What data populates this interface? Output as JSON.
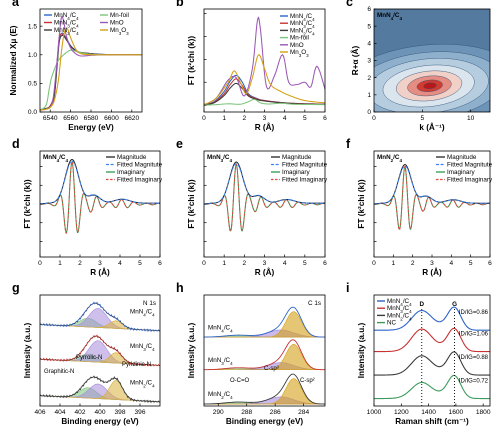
{
  "colors": {
    "MnN4C4": "#2c64c8",
    "MnN3C4": "#c83232",
    "MnN2C4": "#3c3c3c",
    "NC": "#3c9a5c",
    "Mnfoil": "#7cc47c",
    "MnO": "#9b59b6",
    "Mn3O3": "#d4a017",
    "magnitude": "#222222",
    "fitmag": "#3b82f6",
    "imag": "#2e9c4f",
    "fitimag": "#e0473c",
    "pyrrolic": "#a78bdb",
    "pyridinic": "#d9b03a",
    "graphitic": "#7cc47c",
    "csp2": "#d4a017",
    "csp3": "#a78bdb",
    "oco": "#7cc47c"
  },
  "chart_data": [
    {
      "panel": "a",
      "type": "line",
      "xlabel": "Energy (eV)",
      "ylabel": "Normalized Xμ (E)",
      "xlim": [
        6530,
        6630
      ],
      "ylim": [
        0,
        1.8
      ],
      "xticks": [
        "6540",
        "6560",
        "6580",
        "6600",
        "6620"
      ],
      "yticks": [
        "0.0",
        "0.5",
        "1.0",
        "1.5"
      ],
      "legend": [
        "MnN4/C4",
        "MnN3/C4",
        "MnN2/C4",
        "Mn-foil",
        "MnO",
        "Mn3O3"
      ],
      "series": [
        {
          "name": "MnN4/C4",
          "x": [
            6530,
            6536,
            6540,
            6544,
            6547,
            6549,
            6552,
            6556,
            6560,
            6565,
            6570,
            6580,
            6590,
            6600,
            6610,
            6620,
            6630
          ],
          "y": [
            0.04,
            0.06,
            0.1,
            0.3,
            0.9,
            1.28,
            1.38,
            1.28,
            1.16,
            1.08,
            1.04,
            1.02,
            1.01,
            1.0,
            1.0,
            1.0,
            1.0
          ]
        },
        {
          "name": "MnN3/C4",
          "x": [
            6530,
            6536,
            6540,
            6544,
            6547,
            6549,
            6552,
            6556,
            6560,
            6565,
            6570,
            6580,
            6590,
            6600,
            6610,
            6620,
            6630
          ],
          "y": [
            0.04,
            0.06,
            0.11,
            0.32,
            0.92,
            1.3,
            1.36,
            1.26,
            1.15,
            1.07,
            1.04,
            1.02,
            1.0,
            1.0,
            1.0,
            1.0,
            1.0
          ]
        },
        {
          "name": "MnN2/C4",
          "x": [
            6530,
            6536,
            6540,
            6544,
            6547,
            6549,
            6552,
            6556,
            6560,
            6565,
            6570,
            6580,
            6590,
            6600,
            6610,
            6620,
            6630
          ],
          "y": [
            0.04,
            0.06,
            0.1,
            0.28,
            0.86,
            1.24,
            1.34,
            1.26,
            1.15,
            1.07,
            1.04,
            1.02,
            1.0,
            1.0,
            1.0,
            1.0,
            1.0
          ]
        },
        {
          "name": "Mn-foil",
          "x": [
            6530,
            6536,
            6539,
            6541,
            6544,
            6548,
            6552,
            6556,
            6560,
            6566,
            6572,
            6580,
            6590,
            6600,
            6610,
            6620,
            6630
          ],
          "y": [
            0.03,
            0.12,
            0.4,
            0.58,
            0.74,
            0.9,
            0.98,
            1.04,
            1.08,
            1.06,
            1.03,
            1.01,
            1.0,
            1.0,
            1.0,
            1.0,
            1.0
          ]
        },
        {
          "name": "MnO",
          "x": [
            6530,
            6536,
            6540,
            6543,
            6546,
            6549,
            6551,
            6553,
            6556,
            6560,
            6565,
            6570,
            6580,
            6590,
            6600,
            6610,
            6620,
            6630
          ],
          "y": [
            0.03,
            0.05,
            0.09,
            0.25,
            0.75,
            1.35,
            1.65,
            1.6,
            1.32,
            1.12,
            1.02,
            0.98,
            0.99,
            1.0,
            1.0,
            1.0,
            1.0,
            1.0
          ]
        },
        {
          "name": "Mn3O3",
          "x": [
            6530,
            6536,
            6540,
            6544,
            6548,
            6551,
            6554,
            6557,
            6560,
            6565,
            6570,
            6580,
            6590,
            6600,
            6610,
            6620,
            6630
          ],
          "y": [
            0.03,
            0.05,
            0.08,
            0.2,
            0.55,
            1.05,
            1.4,
            1.45,
            1.3,
            1.1,
            1.02,
            1.0,
            1.0,
            1.0,
            1.0,
            1.0,
            1.0
          ]
        }
      ]
    },
    {
      "panel": "b",
      "type": "line",
      "xlabel": "R (Å)",
      "ylabel": "FT (k²chi (k))",
      "xlim": [
        0,
        6
      ],
      "ylim": [
        -0.3,
        4.2
      ],
      "xticks": [
        "0",
        "1",
        "2",
        "3",
        "4",
        "5",
        "6"
      ],
      "legend": [
        "MnN4/C4",
        "MnN3/C4",
        "MnN2/C4",
        "Mn-foil",
        "MnO",
        "Mn3O3"
      ],
      "series": [
        {
          "name": "MnN4/C4",
          "x": [
            0,
            0.5,
            1,
            1.3,
            1.6,
            1.9,
            2.2,
            2.6,
            3,
            4,
            5,
            6
          ],
          "y": [
            0.02,
            0.15,
            0.6,
            1.05,
            1.3,
            1.0,
            0.5,
            0.3,
            0.2,
            0.1,
            0.06,
            0.04
          ]
        },
        {
          "name": "MnN3/C4",
          "x": [
            0,
            0.5,
            1,
            1.3,
            1.6,
            1.9,
            2.2,
            2.6,
            3,
            4,
            5,
            6
          ],
          "y": [
            0.02,
            0.12,
            0.5,
            0.9,
            1.15,
            0.85,
            0.45,
            0.28,
            0.2,
            0.1,
            0.06,
            0.04
          ]
        },
        {
          "name": "MnN2/C4",
          "x": [
            0,
            0.5,
            1,
            1.3,
            1.6,
            1.9,
            2.2,
            2.6,
            3,
            4,
            5,
            6
          ],
          "y": [
            0.02,
            0.1,
            0.42,
            0.75,
            0.95,
            0.72,
            0.4,
            0.25,
            0.18,
            0.09,
            0.05,
            0.03
          ]
        },
        {
          "name": "Mn-foil",
          "x": [
            0,
            0.6,
            1.2,
            1.8,
            2.2,
            2.5,
            2.8,
            3.2,
            3.8,
            4.4,
            5,
            6
          ],
          "y": [
            0.0,
            0.02,
            0.06,
            0.04,
            0.15,
            0.25,
            0.1,
            0.05,
            0.08,
            0.04,
            0.03,
            0.02
          ]
        },
        {
          "name": "MnO",
          "x": [
            0,
            0.6,
            1.2,
            1.6,
            2.0,
            2.4,
            2.65,
            2.8,
            3.1,
            3.5,
            3.9,
            4.2,
            4.6,
            5.0,
            5.3,
            5.6,
            6
          ],
          "y": [
            0.02,
            0.3,
            1.1,
            1.2,
            0.4,
            1.6,
            3.7,
            3.3,
            0.8,
            1.3,
            2.2,
            1.0,
            0.9,
            1.0,
            0.8,
            1.7,
            0.7
          ]
        },
        {
          "name": "Mn3O3",
          "x": [
            0,
            0.6,
            1.2,
            1.5,
            1.8,
            2.1,
            2.4,
            2.7,
            3.0,
            3.3,
            3.8,
            4.3,
            5,
            6
          ],
          "y": [
            0.02,
            0.3,
            1.0,
            1.5,
            1.0,
            0.5,
            1.2,
            2.2,
            1.6,
            0.9,
            0.6,
            0.4,
            0.2,
            0.1
          ]
        }
      ]
    },
    {
      "panel": "c",
      "type": "heatmap",
      "title": "MnN4/C4",
      "xlabel": "k (Å⁻¹)",
      "ylabel": "R+α (Å)",
      "xlim": [
        0,
        12
      ],
      "ylim": [
        0,
        6
      ],
      "xticks": [
        "0",
        "5",
        "10"
      ],
      "yticks": [
        "0",
        "1",
        "2",
        "3",
        "4",
        "5",
        "6"
      ],
      "peak": {
        "k": 5.5,
        "r": 1.5
      }
    },
    {
      "panel": "d",
      "type": "line",
      "sample": "MnN4/C4",
      "xlabel": "R (Å)",
      "ylabel": "FT (k²chi (k))",
      "xlim": [
        0,
        6
      ],
      "ylim": [
        -0.85,
        0.85
      ],
      "xticks": [
        "0",
        "1",
        "2",
        "3",
        "4",
        "5",
        "6"
      ],
      "legend": [
        "Magnitude",
        "Fitted Magnitute",
        "Imaginary",
        "Fitted Imaginary"
      ],
      "peak_r": 1.6,
      "amplitude": 0.7
    },
    {
      "panel": "e",
      "type": "line",
      "sample": "MnN3/C4",
      "xlabel": "R (Å)",
      "ylabel": "FT (k²chi (k))",
      "xlim": [
        0,
        6
      ],
      "ylim": [
        -0.85,
        0.85
      ],
      "xticks": [
        "0",
        "1",
        "2",
        "3",
        "4",
        "5",
        "6"
      ],
      "legend": [
        "Magnitude",
        "Fitted Magnitute",
        "Imaginary",
        "Fitted Imaginary"
      ],
      "peak_r": 1.6,
      "amplitude": 0.66
    },
    {
      "panel": "f",
      "type": "line",
      "sample": "MnN2/C4",
      "xlabel": "R (Å)",
      "ylabel": "FT (k²chi (k))",
      "xlim": [
        0,
        6
      ],
      "ylim": [
        -0.85,
        0.85
      ],
      "xticks": [
        "0",
        "1",
        "2",
        "3",
        "4",
        "5",
        "6"
      ],
      "legend": [
        "Magnitude",
        "Fitted Magnitute",
        "Imaginary",
        "Fitted Imaginary"
      ],
      "peak_r": 1.6,
      "amplitude": 0.62
    },
    {
      "panel": "g",
      "type": "line",
      "title": "N 1s",
      "xlabel": "Binding energy (eV)",
      "ylabel": "Intensity (a.u.)",
      "xlim": [
        406,
        394
      ],
      "xticks": [
        "406",
        "404",
        "402",
        "400",
        "398",
        "396"
      ],
      "samples": [
        "MnN4/C4",
        "MnN3/C4",
        "MnN2/C4"
      ],
      "components": [
        "Graphitic-N",
        "Pyrrolic-N",
        "Pyridinic-N"
      ],
      "peaks_eV": {
        "Graphitic-N": 401.2,
        "Pyrrolic-N": 400.2,
        "Pyridinic-N": 398.4
      }
    },
    {
      "panel": "h",
      "type": "line",
      "title": "C 1s",
      "xlabel": "Binding energy (eV)",
      "ylabel": "Intensity (a.u.)",
      "xlim": [
        291,
        282.5
      ],
      "xticks": [
        "290",
        "288",
        "286",
        "284"
      ],
      "samples": [
        "MnN4/C4",
        "MnN3/C4",
        "MnN2/C4"
      ],
      "components": [
        "O-C=O",
        "C-sp³",
        "C-sp²"
      ],
      "peaks_eV": {
        "O-C=O": 288.6,
        "C-sp³": 285.6,
        "C-sp²": 284.7
      }
    },
    {
      "panel": "i",
      "type": "line",
      "xlabel": "Raman shift (cm⁻¹)",
      "ylabel": "Intensity (a.u.)",
      "xlim": [
        1000,
        1850
      ],
      "xticks": [
        "1000",
        "1200",
        "1400",
        "1600",
        "1800"
      ],
      "legend": [
        "MnN4/C4",
        "MnN3/C4",
        "MnN2/C4",
        "NC"
      ],
      "bands": {
        "D": 1350,
        "G": 1590
      },
      "ratios": [
        {
          "sample": "MnN4/C4",
          "label": "ID/IG=0.86"
        },
        {
          "sample": "MnN3/C4",
          "label": "ID/IG=1.06"
        },
        {
          "sample": "MnN2/C4",
          "label": "ID/IG=0.88"
        },
        {
          "sample": "NC",
          "label": "ID/IG=0.72"
        }
      ]
    }
  ]
}
